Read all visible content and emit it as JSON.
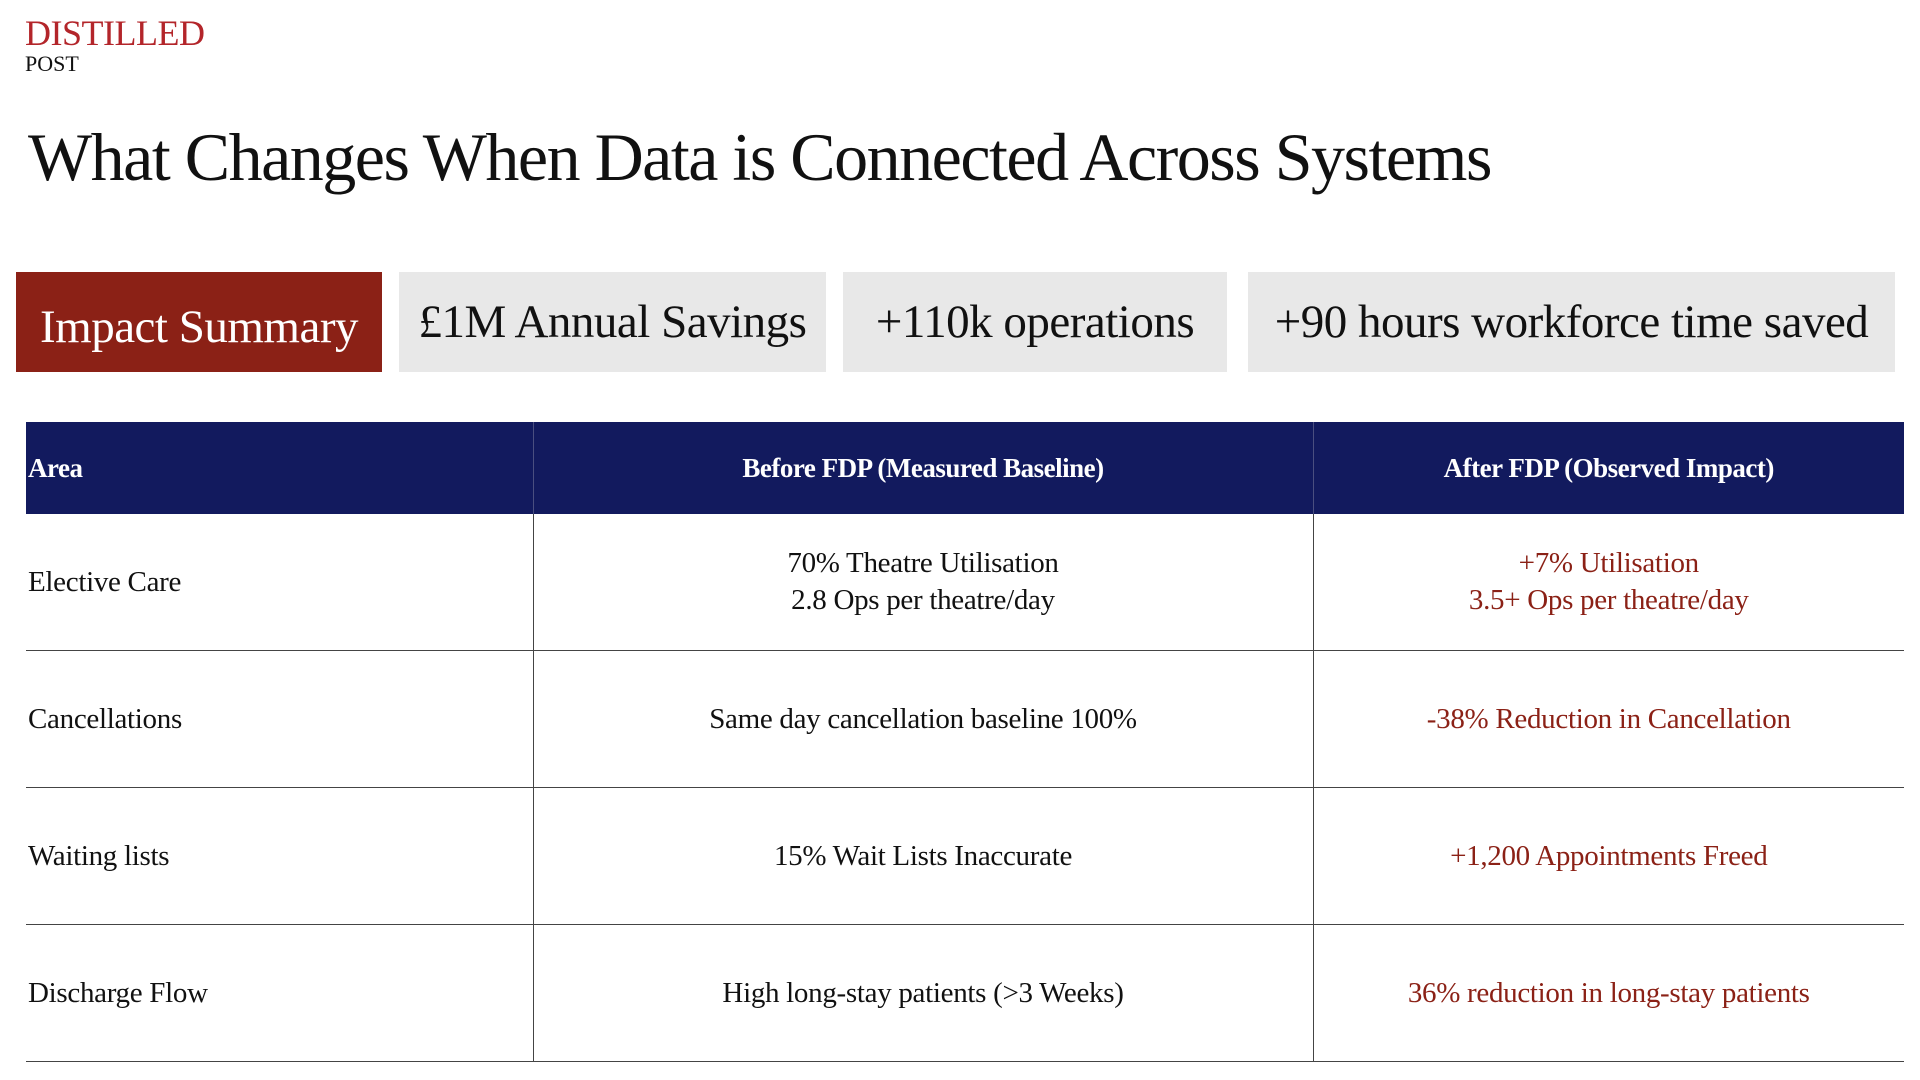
{
  "brand": {
    "name": "DISTILLED",
    "sub": "POST"
  },
  "title": "What Changes When Data is Connected Across Systems",
  "summary": {
    "label": "Impact Summary",
    "items": [
      "£1M Annual Savings",
      "+110k operations",
      "+90 hours workforce time saved"
    ]
  },
  "table": {
    "headers": [
      "Area",
      "Before FDP (Measured Baseline)",
      "After FDP (Observed Impact)"
    ],
    "rows": [
      [
        [
          "Elective Care"
        ],
        [
          "70% Theatre Utilisation",
          "2.8 Ops per theatre/day"
        ],
        [
          "+7% Utilisation",
          "3.5+ Ops per theatre/day"
        ]
      ],
      [
        [
          "Cancellations"
        ],
        [
          "Same day cancellation baseline 100%"
        ],
        [
          "-38% Reduction in Cancellation"
        ]
      ],
      [
        [
          "Waiting lists"
        ],
        [
          "15% Wait Lists Inaccurate"
        ],
        [
          "+1,200 Appointments Freed"
        ]
      ],
      [
        [
          "Discharge Flow"
        ],
        [
          "High long-stay patients (>3 Weeks)"
        ],
        [
          "36% reduction in long-stay patients"
        ]
      ]
    ]
  }
}
